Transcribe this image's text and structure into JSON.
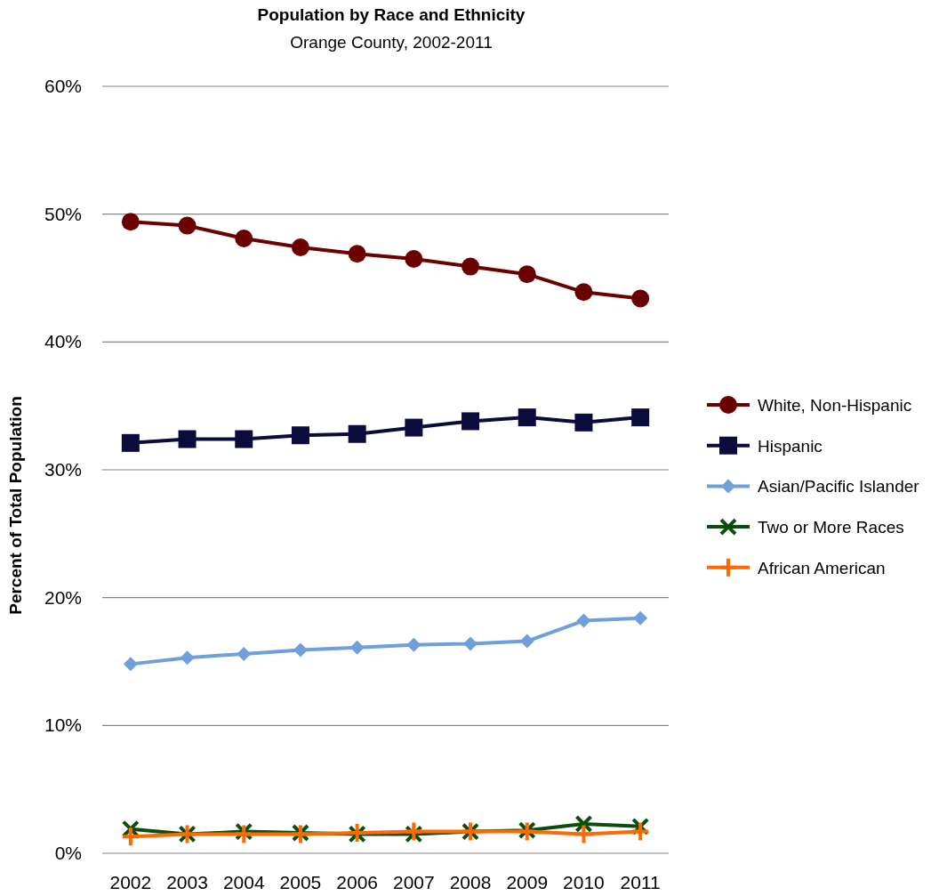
{
  "chart_data": {
    "type": "line",
    "title": "Population by Race and Ethnicity",
    "subtitle": "Orange County, 2002-2011",
    "ylabel": "Percent of Total Population",
    "categories": [
      "2002",
      "2003",
      "2004",
      "2005",
      "2006",
      "2007",
      "2008",
      "2009",
      "2010",
      "2011"
    ],
    "ylim": [
      0,
      60
    ],
    "yticks": [
      {
        "value": 0,
        "label": "0%"
      },
      {
        "value": 10,
        "label": "10%"
      },
      {
        "value": 20,
        "label": "20%"
      },
      {
        "value": 30,
        "label": "30%"
      },
      {
        "value": 40,
        "label": "40%"
      },
      {
        "value": 50,
        "label": "50%"
      },
      {
        "value": 60,
        "label": "60%"
      }
    ],
    "grid": "y",
    "legend": "right",
    "series": [
      {
        "name": "White, Non-Hispanic",
        "color": "#6b0000",
        "marker": "circle",
        "values": [
          49.4,
          49.1,
          48.1,
          47.4,
          46.9,
          46.5,
          45.9,
          45.3,
          43.9,
          43.4
        ]
      },
      {
        "name": "Hispanic",
        "color": "#0c0c3c",
        "marker": "square",
        "values": [
          32.1,
          32.4,
          32.4,
          32.7,
          32.8,
          33.3,
          33.8,
          34.1,
          33.7,
          34.1
        ]
      },
      {
        "name": "Asian/Pacific Islander",
        "color": "#6fa0dc",
        "marker": "diamond",
        "values": [
          14.8,
          15.3,
          15.6,
          15.9,
          16.1,
          16.3,
          16.4,
          16.6,
          18.2,
          18.4
        ]
      },
      {
        "name": "Two or More Races",
        "color": "#0b4d0b",
        "marker": "cross",
        "values": [
          1.9,
          1.5,
          1.7,
          1.6,
          1.5,
          1.5,
          1.7,
          1.8,
          2.3,
          2.1
        ]
      },
      {
        "name": "African American",
        "color": "#ff6a00",
        "marker": "plus",
        "values": [
          1.3,
          1.5,
          1.5,
          1.5,
          1.6,
          1.7,
          1.7,
          1.7,
          1.5,
          1.7
        ]
      }
    ]
  }
}
